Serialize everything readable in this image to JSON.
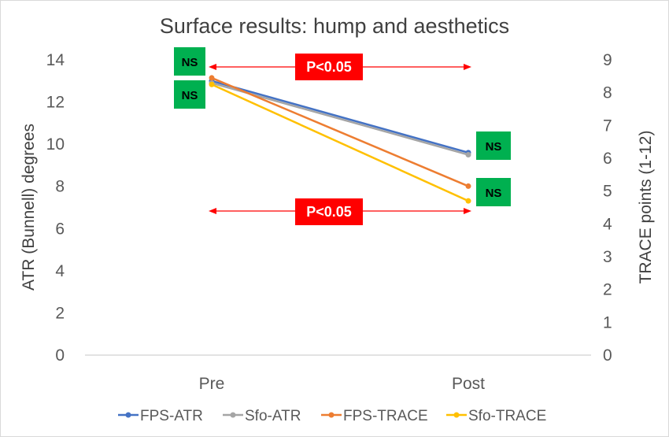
{
  "chart_data": {
    "type": "line",
    "title": "Surface results: hump and aesthetics",
    "categories": [
      "Pre",
      "Post"
    ],
    "ylabel": "ATR (Bunnell) degrees",
    "y2label": "TRACE points (1-12)",
    "ylim": [
      0,
      14
    ],
    "y2lim": [
      0,
      9
    ],
    "yticks": [
      "0",
      "2",
      "4",
      "6",
      "8",
      "10",
      "12",
      "14"
    ],
    "y2ticks": [
      "0",
      "1",
      "2",
      "3",
      "4",
      "5",
      "6",
      "7",
      "8",
      "9"
    ],
    "grid": false,
    "legend_position": "bottom",
    "series": [
      {
        "name": "FPS-ATR",
        "axis": "left",
        "color": "#4472C4",
        "values": [
          13.0,
          9.6
        ]
      },
      {
        "name": "Sfo-ATR",
        "axis": "left",
        "color": "#A5A5A5",
        "values": [
          12.9,
          9.5
        ]
      },
      {
        "name": "FPS-TRACE",
        "axis": "right",
        "color": "#ED7D31",
        "values": [
          8.45,
          5.15
        ]
      },
      {
        "name": "Sfo-TRACE",
        "axis": "right",
        "color": "#FFC000",
        "values": [
          8.25,
          4.7
        ]
      }
    ],
    "annotations": {
      "ns_label": "NS",
      "sig_label": "P<0.05",
      "ns_color": "#00B050",
      "sig_color": "#FF0000"
    }
  }
}
